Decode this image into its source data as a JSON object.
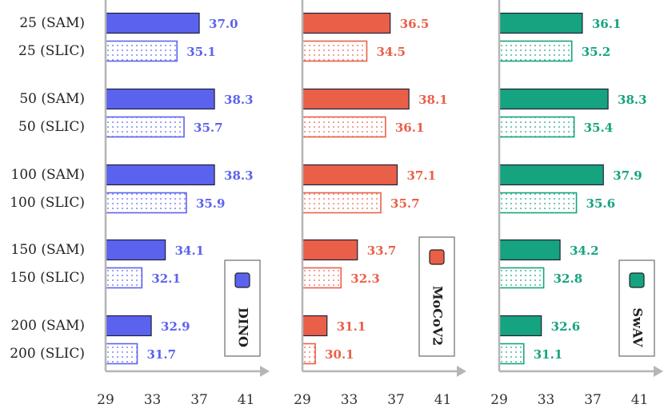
{
  "chart_data": {
    "type": "bar",
    "orientation": "horizontal",
    "categories": [
      "25 (SAM)",
      "25 (SLIC)",
      "50 (SAM)",
      "50 (SLIC)",
      "100 (SAM)",
      "100 (SLIC)",
      "150 (SAM)",
      "150 (SLIC)",
      "200 (SAM)",
      "200 (SLIC)"
    ],
    "x_ticks": [
      29,
      33,
      37,
      41
    ],
    "xlim": [
      29,
      42
    ],
    "panels": [
      {
        "name": "DINO",
        "color": "#5b63ee",
        "values": [
          37.0,
          35.1,
          38.3,
          35.7,
          38.3,
          35.9,
          34.1,
          32.1,
          32.9,
          31.7
        ]
      },
      {
        "name": "MoCoV2",
        "color": "#ea5f48",
        "values": [
          36.5,
          34.5,
          38.1,
          36.1,
          37.1,
          35.7,
          33.7,
          32.3,
          31.1,
          30.1
        ]
      },
      {
        "name": "SwAV",
        "color": "#16a37f",
        "values": [
          36.1,
          35.2,
          38.3,
          35.4,
          37.9,
          35.6,
          34.2,
          32.8,
          32.6,
          31.1
        ]
      }
    ],
    "pattern_note": "SAM bars solid, SLIC bars dotted"
  }
}
